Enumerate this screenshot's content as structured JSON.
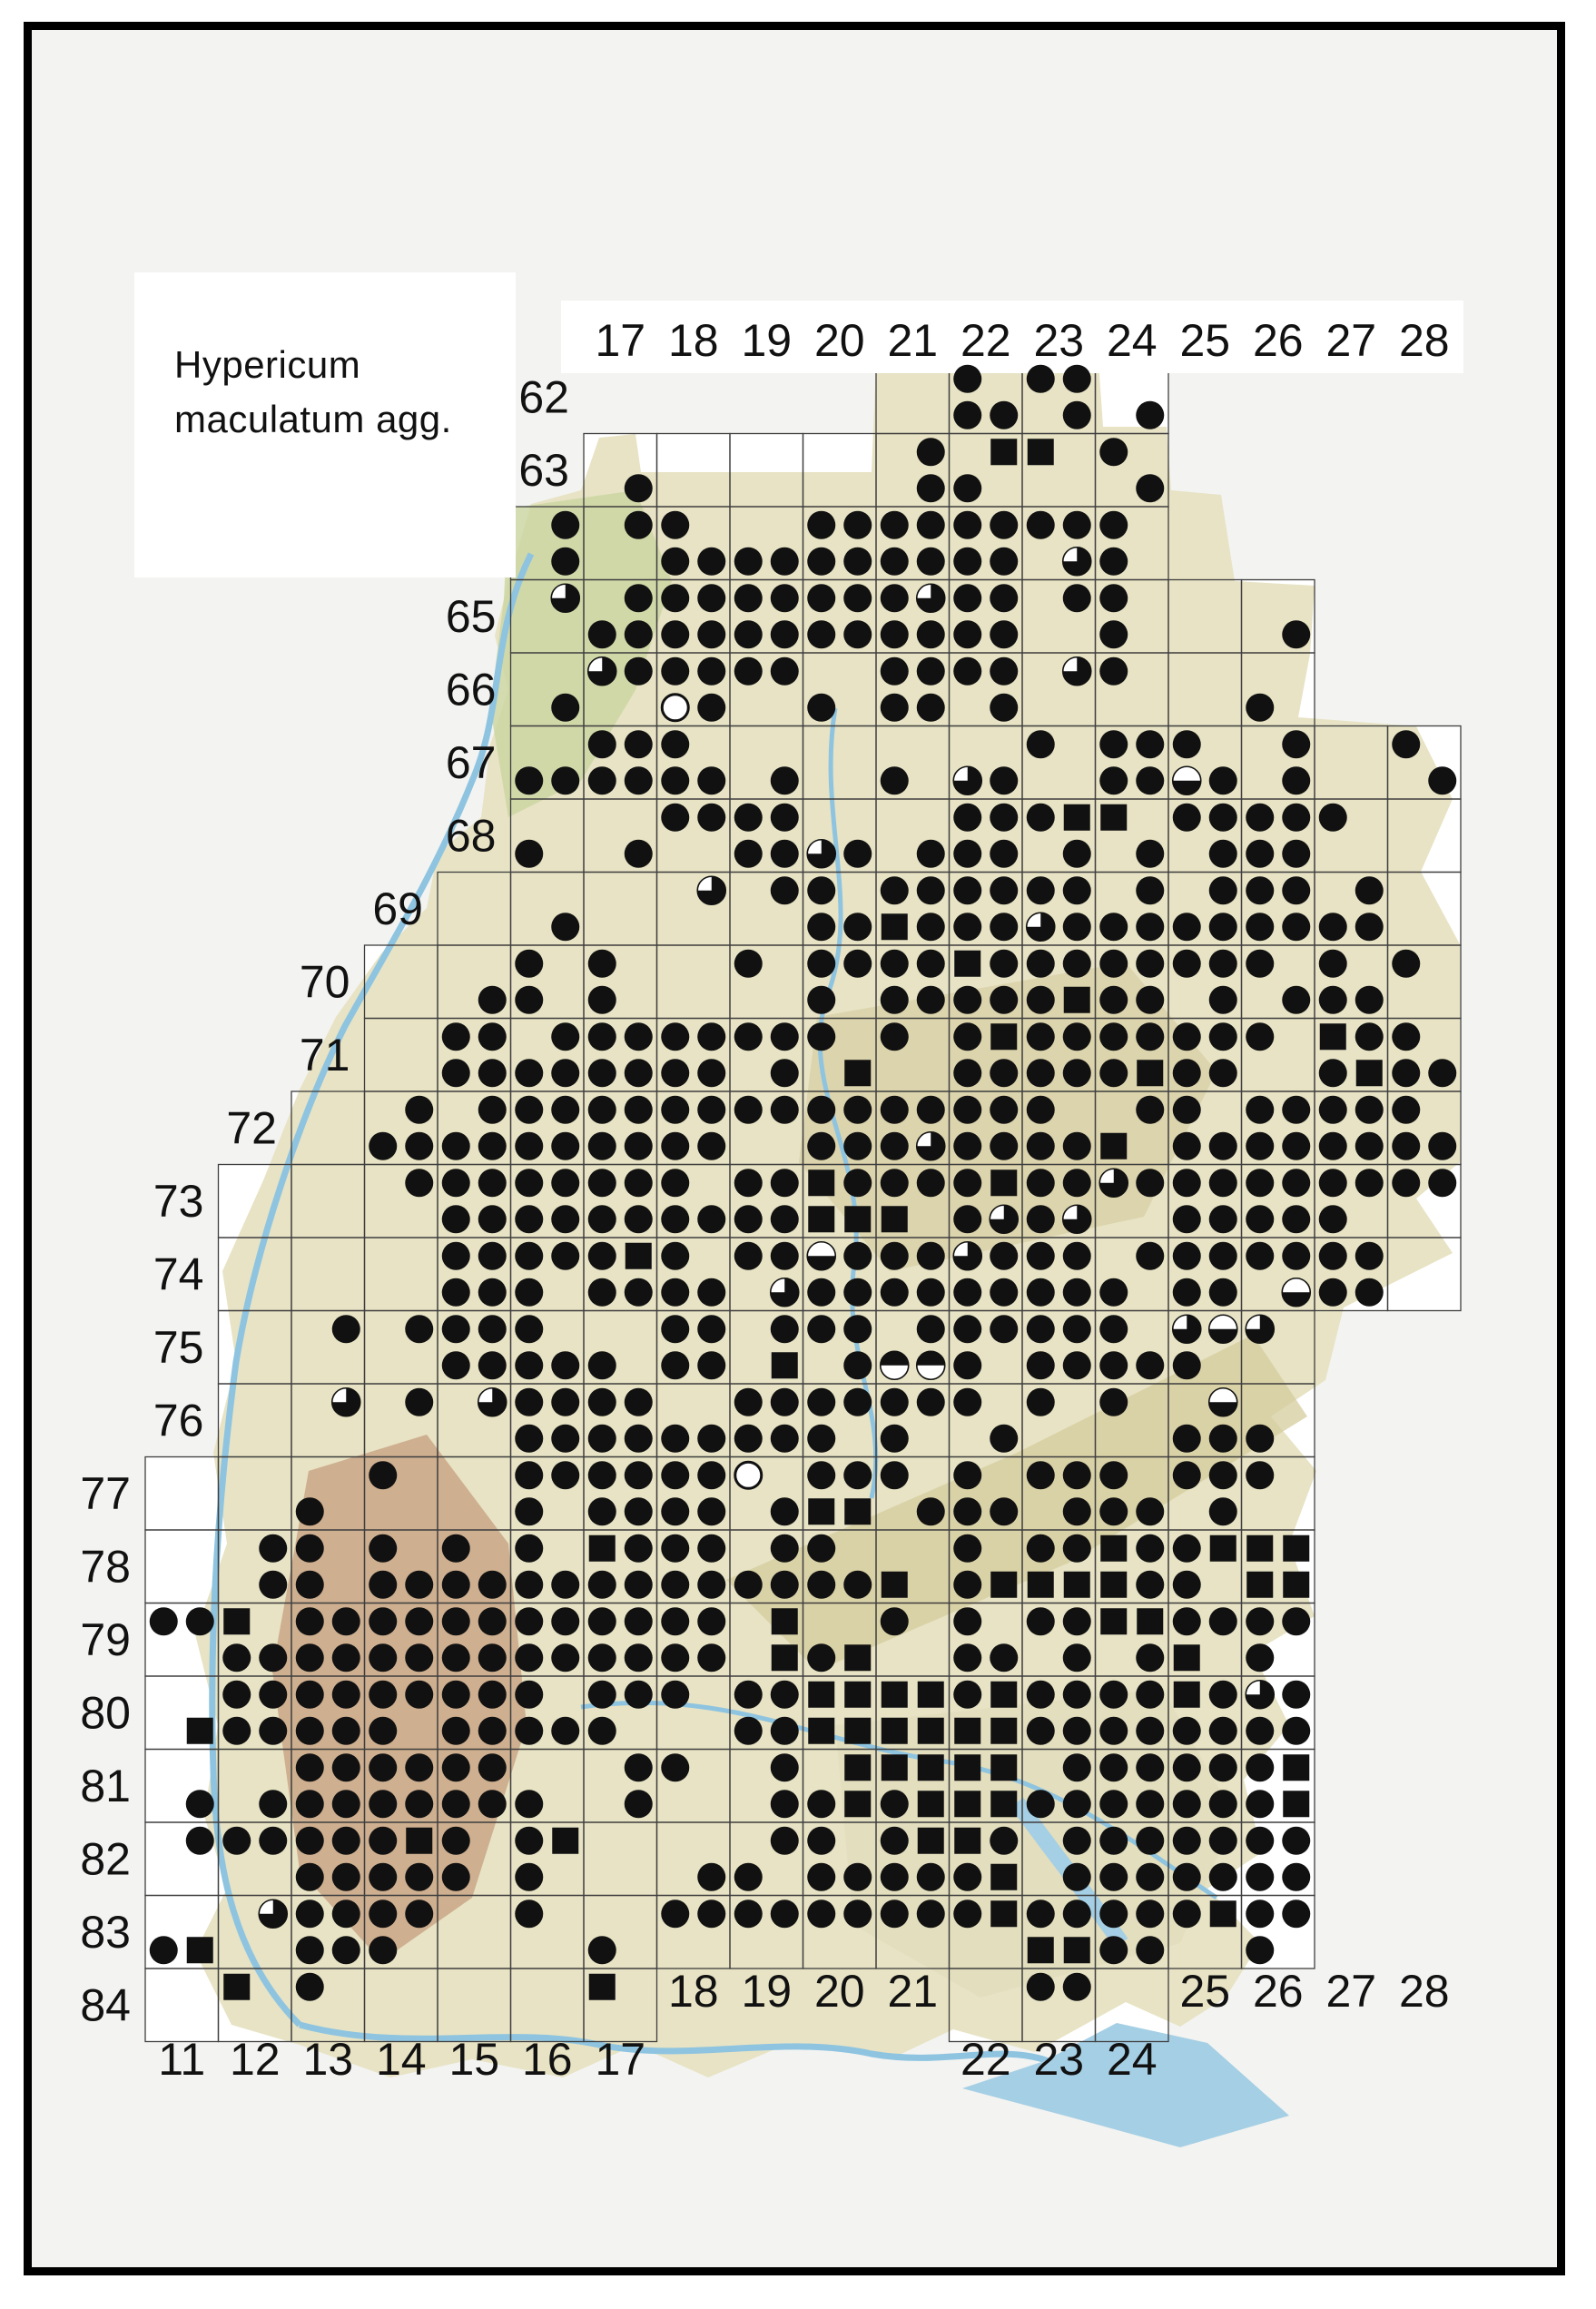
{
  "title": {
    "line1": "Hypericum",
    "line2": "maculatum agg."
  },
  "grid": {
    "top_labels": [
      "17",
      "18",
      "19",
      "20",
      "21",
      "22",
      "23",
      "24",
      "25",
      "26",
      "27",
      "28"
    ],
    "left_labels": [
      "62",
      "63",
      "64",
      "65",
      "66",
      "67",
      "68",
      "69",
      "70",
      "71",
      "72",
      "73",
      "74",
      "75",
      "76",
      "77",
      "78",
      "79",
      "80",
      "81",
      "82",
      "83",
      "84"
    ],
    "bottom_labels_upper": [
      "18",
      "19",
      "20",
      "21",
      "25",
      "26",
      "27",
      "28"
    ],
    "bottom_labels_lower": [
      "11",
      "12",
      "13",
      "14",
      "15",
      "16",
      "17",
      "22",
      "23",
      "24"
    ]
  },
  "row_label_anchor_col": {
    "62": 17,
    "63": 17,
    "64": 16,
    "65": 16,
    "66": 16,
    "67": 16,
    "68": 16,
    "69": 15,
    "70": 14,
    "71": 14,
    "72": 13,
    "73": 12,
    "74": 12,
    "75": 12,
    "76": 12,
    "77": 11,
    "78": 11,
    "79": 11,
    "80": 11,
    "81": 11,
    "82": 11,
    "83": 11,
    "84": 11
  },
  "row_cell_ranges": {
    "62": [
      [
        21,
        24
      ]
    ],
    "63": [
      [
        17,
        24
      ]
    ],
    "64": [
      [
        16,
        24
      ]
    ],
    "65": [
      [
        16,
        26
      ]
    ],
    "66": [
      [
        16,
        26
      ]
    ],
    "67": [
      [
        16,
        28
      ]
    ],
    "68": [
      [
        16,
        28
      ]
    ],
    "69": [
      [
        15,
        28
      ]
    ],
    "70": [
      [
        14,
        28
      ]
    ],
    "71": [
      [
        14,
        28
      ]
    ],
    "72": [
      [
        13,
        28
      ]
    ],
    "73": [
      [
        12,
        28
      ]
    ],
    "74": [
      [
        12,
        28
      ]
    ],
    "75": [
      [
        12,
        26
      ]
    ],
    "76": [
      [
        12,
        26
      ]
    ],
    "77": [
      [
        11,
        26
      ]
    ],
    "78": [
      [
        11,
        26
      ]
    ],
    "79": [
      [
        11,
        26
      ]
    ],
    "80": [
      [
        11,
        26
      ]
    ],
    "81": [
      [
        11,
        26
      ]
    ],
    "82": [
      [
        11,
        26
      ]
    ],
    "83": [
      [
        11,
        26
      ]
    ],
    "84": [
      [
        11,
        17
      ],
      [
        22,
        24
      ]
    ]
  },
  "symbol_key": {
    "O": "filled-circle-record",
    "S": "filled-square-record",
    "H": "three-quarter-circle-white-top-left",
    "T": "half-circle-white-top",
    "B": "half-circle-white-bottom",
    "W": "open-circle-record"
  },
  "cells": {
    "62": {
      "22": "O.OO",
      "23": "OO.O",
      "24": "...O"
    },
    "63": {
      "17": "...O",
      "21": ".O.O",
      "22": ".SO.",
      "23": "S...",
      "24": "O..O"
    },
    "64": {
      "16": ".O.O",
      "17": ".O..",
      "18": "O.OO",
      "19": "..OO",
      "20": "OOOO",
      "21": "OOOO",
      "22": "OOOO",
      "23": "OO.H",
      "24": "O.O."
    },
    "65": {
      "16": ".H..",
      "17": ".OOO",
      "18": "OOOO",
      "19": "OOOO",
      "20": "OOOO",
      "21": "OHOO",
      "22": "OOOO",
      "23": ".O..",
      "24": "O.O.",
      "26": "...O"
    },
    "66": {
      "16": "...O",
      "17": "HO..",
      "18": "OOWO",
      "19": "OO..",
      "20": "..O.",
      "21": "OOOO",
      "22": "OO.O",
      "23": ".H..",
      "24": "O...",
      "26": "..O."
    },
    "67": {
      "16": "..OO",
      "17": "OOOO",
      "18": "O.OO",
      "19": "...O",
      "21": "..O.",
      "22": "..HO",
      "23": "O...",
      "24": "OOOO",
      "25": "O.TO",
      "26": ".O.O",
      "28": "O..O"
    },
    "68": {
      "16": "..O.",
      "17": "...O",
      "18": "OO..",
      "19": "OOOO",
      "20": "..HO",
      "21": "...O",
      "22": "OOOO",
      "23": "OS.O",
      "24": "S..O",
      "25": "OO.O",
      "26": "OOOO",
      "27": "O..."
    },
    "69": {
      "16": "...O",
      "18": ".H..",
      "19": ".O..",
      "20": "O.OO",
      "21": "OOSO",
      "22": "OOOO",
      "23": "OOHO",
      "24": ".OOO",
      "25": ".OOO",
      "26": "OOOO",
      "27": ".OOO"
    },
    "70": {
      "15": "...O",
      "16": "O.O.",
      "17": "O.O.",
      "19": "O...",
      "20": "OOO.",
      "21": "OOOO",
      "22": "SOOO",
      "23": "OOOS",
      "24": "OOOO",
      "25": "OO.O",
      "26": "O..O",
      "27": "O.OO",
      "28": "O..."
    },
    "71": {
      "15": "OOOO",
      "16": ".OOO",
      "17": "OOOO",
      "18": "OOOO",
      "19": "OO.O",
      "20": "O..S",
      "21": "O...",
      "22": "OSOO",
      "23": "OOOO",
      "24": "OOOS",
      "25": "OOOO",
      "26": "O...",
      "27": "SOOS",
      "28": "O.OO"
    },
    "72": {
      "14": ".OOO",
      "15": ".OOO",
      "16": "OOOO",
      "17": "OOOO",
      "18": "OOOO",
      "19": "OO..",
      "20": "OOOO",
      "21": "OOOH",
      "22": "OOOO",
      "23": "O.OO",
      "24": ".OS.",
      "25": "O.OO",
      "26": "OOOO",
      "27": "OOOO",
      "28": "O.OO"
    },
    "73": {
      "14": ".O..",
      "15": "OOOO",
      "16": "OOOO",
      "17": "OOOO",
      "18": "O.OO",
      "19": "OOOO",
      "20": "SOSS",
      "21": "OOS.",
      "22": "OSOH",
      "23": "OOOH",
      "24": "HO..",
      "25": "OOOO",
      "26": "OOOO",
      "27": "OOO.",
      "28": "OO.."
    },
    "74": {
      "15": "OOOO",
      "16": "OOO.",
      "17": "OSOO",
      "18": "O.OO",
      "19": "OO.H",
      "20": "TOOO",
      "21": "OOOO",
      "22": "HOOO",
      "23": "OOOO",
      "24": ".OO.",
      "25": "OOOO",
      "26": "OO.T",
      "27": "OOOO"
    },
    "75": {
      "13": ".O..",
      "14": ".O..",
      "15": "OOOO",
      "16": "O.OO",
      "17": "..O.",
      "18": "OOOO",
      "19": ".O.S",
      "20": "OO.O",
      "21": ".OBB",
      "22": "OOO.",
      "23": "OOOO",
      "24": "O.OO",
      "25": "HTO.",
      "26": "H..."
    },
    "76": {
      "13": ".H..",
      "14": ".O..",
      "15": ".H..",
      "16": "OOOO",
      "17": "OOOO",
      "18": "..OO",
      "19": "OOOO",
      "20": "OOO.",
      "21": "OOO.",
      "22": "O..O",
      "23": "O...",
      "24": "O...",
      "25": ".TOO",
      "26": "..O."
    },
    "77": {
      "13": "..O.",
      "14": "O...",
      "16": "OOO.",
      "17": "OOOO",
      "18": "OOOO",
      "19": "W..O",
      "20": "OOSS",
      "21": "O..O",
      "22": "O.OO",
      "23": "OO.O",
      "24": "O.OO",
      "25": "OO.O",
      "26": "O..."
    },
    "78": {
      "12": ".O.O",
      "13": "O.O.",
      "14": "O.OO",
      "15": "O.OO",
      "16": "O.OO",
      "17": "SOOO",
      "18": "OOOO",
      "19": ".OOO",
      "20": "O.OO",
      "21": "..S.",
      "22": "O.OS",
      "23": "OOSS",
      "24": "SOSO",
      "25": "OSO.",
      "26": "SSSS"
    },
    "79": {
      "11": "OO..",
      "12": "S.OO",
      "13": "OOOO",
      "14": "OOOO",
      "15": "OOOO",
      "16": "OOOO",
      "17": "OOOO",
      "18": "OOOO",
      "19": ".S.S",
      "20": "..OS",
      "21": "O...",
      "22": "O.OO",
      "23": "OO.O",
      "24": "SS.O",
      "25": "OOS.",
      "26": "OOO."
    },
    "80": {
      "11": "...S",
      "12": "OOOO",
      "13": "OOOO",
      "14": "OOO.",
      "15": "OOOO",
      "16": "O.OO",
      "17": "OOO.",
      "18": "O...",
      "19": "OOOO",
      "20": "SSSS",
      "21": "SSSS",
      "22": "OSSS",
      "23": "OOOO",
      "24": "OOOO",
      "25": "SOOO",
      "26": "HOOO"
    },
    "81": {
      "11": "...O",
      "12": "...O",
      "13": "OOOO",
      "14": "OOOO",
      "15": "OOOO",
      "16": "..O.",
      "17": ".O.O",
      "18": "O...",
      "19": ".O.O",
      "20": ".SOS",
      "21": "SSOS",
      "22": "SSSS",
      "23": ".OOO",
      "24": "OOOO",
      "25": "OOOO",
      "26": "OSOS"
    },
    "82": {
      "11": ".O..",
      "12": "OO..",
      "13": "OOOO",
      "14": "OSOO",
      "15": "O.O.",
      "16": "OSO.",
      "18": "...O",
      "19": ".OO.",
      "20": "O.OO",
      "21": "OSOO",
      "22": "SOOS",
      "23": ".O.O",
      "24": "OOOO",
      "25": "OOOO",
      "26": "OOOO"
    },
    "83": {
      "11": "..OS",
      "12": ".H..",
      "13": "OOOO",
      "14": "OOO.",
      "16": "O...",
      "17": "..O.",
      "18": "OO..",
      "19": "OO..",
      "20": "OO..",
      "21": "OO..",
      "22": "OS..",
      "23": "OOSS",
      "24": "OOOO",
      "25": "OS..",
      "26": "OOO."
    },
    "84": {
      "12": "S...",
      "13": "O...",
      "17": "S...",
      "23": "OO.."
    }
  },
  "colors": {
    "symbol": "#111111",
    "grid_line": "#3f3f3f",
    "terrain_base": "#e7e3c4",
    "terrain_hills": "#d9d0a8",
    "terrain_forest_red": "#c69d7f",
    "terrain_green": "#ccd6a3",
    "water": "#8ec4e0",
    "lake": "#a5cfe4",
    "page_inner": "#f3f3f1"
  }
}
